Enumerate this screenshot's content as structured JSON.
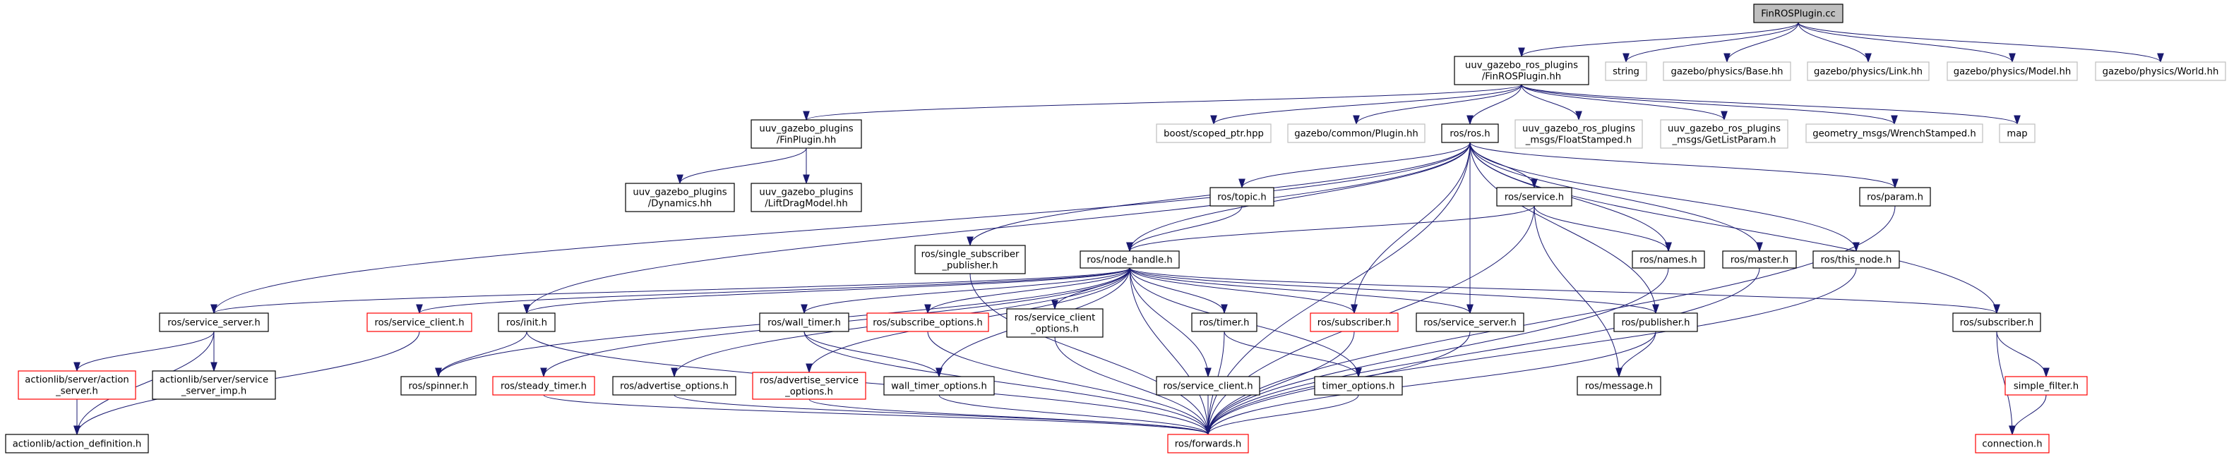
{
  "graph": {
    "edge_color": "#191970",
    "node_border_colors": {
      "internal": "#000000",
      "external": "#bfbfbf",
      "red": "#ff0000",
      "root_fill": "#bfbfbf"
    },
    "nodes": [
      {
        "id": "cc",
        "label": "FinROSPlugin.cc",
        "style": "root"
      },
      {
        "id": "hh",
        "label": "uuv_gazebo_ros_plugins\n/FinROSPlugin.hh",
        "style": "internal"
      },
      {
        "id": "string",
        "label": "string",
        "style": "external"
      },
      {
        "id": "base",
        "label": "gazebo/physics/Base.hh",
        "style": "external"
      },
      {
        "id": "link",
        "label": "gazebo/physics/Link.hh",
        "style": "external"
      },
      {
        "id": "model",
        "label": "gazebo/physics/Model.hh",
        "style": "external"
      },
      {
        "id": "world",
        "label": "gazebo/physics/World.hh",
        "style": "external"
      },
      {
        "id": "finplugin",
        "label": "uuv_gazebo_plugins\n/FinPlugin.hh",
        "style": "internal"
      },
      {
        "id": "boost",
        "label": "boost/scoped_ptr.hpp",
        "style": "external"
      },
      {
        "id": "plugin",
        "label": "gazebo/common/Plugin.hh",
        "style": "external"
      },
      {
        "id": "rosh",
        "label": "ros/ros.h",
        "style": "internal"
      },
      {
        "id": "floatstamped",
        "label": "uuv_gazebo_ros_plugins\n_msgs/FloatStamped.h",
        "style": "external"
      },
      {
        "id": "getlistparam",
        "label": "uuv_gazebo_ros_plugins\n_msgs/GetListParam.h",
        "style": "external"
      },
      {
        "id": "wrench",
        "label": "geometry_msgs/WrenchStamped.h",
        "style": "external"
      },
      {
        "id": "map",
        "label": "map",
        "style": "external"
      },
      {
        "id": "dynamics",
        "label": "uuv_gazebo_plugins\n/Dynamics.hh",
        "style": "internal"
      },
      {
        "id": "liftdrag",
        "label": "uuv_gazebo_plugins\n/LiftDragModel.hh",
        "style": "internal"
      },
      {
        "id": "topic",
        "label": "ros/topic.h",
        "style": "internal"
      },
      {
        "id": "service",
        "label": "ros/service.h",
        "style": "internal"
      },
      {
        "id": "param",
        "label": "ros/param.h",
        "style": "internal"
      },
      {
        "id": "singlesub",
        "label": "ros/single_subscriber\n_publisher.h",
        "style": "internal"
      },
      {
        "id": "nodehandle",
        "label": "ros/node_handle.h",
        "style": "internal"
      },
      {
        "id": "names",
        "label": "ros/names.h",
        "style": "internal"
      },
      {
        "id": "master",
        "label": "ros/master.h",
        "style": "internal"
      },
      {
        "id": "thisnode",
        "label": "ros/this_node.h",
        "style": "internal"
      },
      {
        "id": "servserverL",
        "label": "ros/service_server.h",
        "style": "internal"
      },
      {
        "id": "servclientR",
        "label": "ros/service_client.h",
        "style": "red"
      },
      {
        "id": "init",
        "label": "ros/init.h",
        "style": "internal"
      },
      {
        "id": "walltimer",
        "label": "ros/wall_timer.h",
        "style": "internal"
      },
      {
        "id": "subopts",
        "label": "ros/subscribe_options.h",
        "style": "red"
      },
      {
        "id": "servclientopts",
        "label": "ros/service_client\n_options.h",
        "style": "internal"
      },
      {
        "id": "timer",
        "label": "ros/timer.h",
        "style": "internal"
      },
      {
        "id": "subscriberR",
        "label": "ros/subscriber.h",
        "style": "red"
      },
      {
        "id": "servserverR",
        "label": "ros/service_server.h",
        "style": "internal"
      },
      {
        "id": "publisher",
        "label": "ros/publisher.h",
        "style": "internal"
      },
      {
        "id": "subscriberB",
        "label": "ros/subscriber.h",
        "style": "internal"
      },
      {
        "id": "actionserver",
        "label": "actionlib/server/action\n_server.h",
        "style": "red"
      },
      {
        "id": "servserverimp",
        "label": "actionlib/server/service\n_server_imp.h",
        "style": "internal"
      },
      {
        "id": "spinner",
        "label": "ros/spinner.h",
        "style": "internal"
      },
      {
        "id": "steadytimer",
        "label": "ros/steady_timer.h",
        "style": "red"
      },
      {
        "id": "advopts",
        "label": "ros/advertise_options.h",
        "style": "internal"
      },
      {
        "id": "advservopts",
        "label": "ros/advertise_service\n_options.h",
        "style": "red"
      },
      {
        "id": "walltimeropts",
        "label": "wall_timer_options.h",
        "style": "internal"
      },
      {
        "id": "servclientB",
        "label": "ros/service_client.h",
        "style": "internal"
      },
      {
        "id": "timeropts",
        "label": "timer_options.h",
        "style": "internal"
      },
      {
        "id": "message",
        "label": "ros/message.h",
        "style": "internal"
      },
      {
        "id": "simplefilter",
        "label": "simple_filter.h",
        "style": "red"
      },
      {
        "id": "actiondef",
        "label": "actionlib/action_definition.h",
        "style": "internal"
      },
      {
        "id": "forwards",
        "label": "ros/forwards.h",
        "style": "red"
      },
      {
        "id": "connection",
        "label": "connection.h",
        "style": "red"
      }
    ],
    "edges": [
      [
        "cc",
        "hh"
      ],
      [
        "cc",
        "string"
      ],
      [
        "cc",
        "base"
      ],
      [
        "cc",
        "link"
      ],
      [
        "cc",
        "model"
      ],
      [
        "cc",
        "world"
      ],
      [
        "hh",
        "finplugin"
      ],
      [
        "hh",
        "boost"
      ],
      [
        "hh",
        "plugin"
      ],
      [
        "hh",
        "rosh"
      ],
      [
        "hh",
        "floatstamped"
      ],
      [
        "hh",
        "getlistparam"
      ],
      [
        "hh",
        "wrench"
      ],
      [
        "hh",
        "map"
      ],
      [
        "finplugin",
        "dynamics"
      ],
      [
        "finplugin",
        "liftdrag"
      ],
      [
        "rosh",
        "servserverL"
      ],
      [
        "rosh",
        "singlesub"
      ],
      [
        "rosh",
        "nodehandle"
      ],
      [
        "rosh",
        "topic"
      ],
      [
        "rosh",
        "service"
      ],
      [
        "rosh",
        "init"
      ],
      [
        "rosh",
        "names"
      ],
      [
        "rosh",
        "master"
      ],
      [
        "rosh",
        "thisnode"
      ],
      [
        "rosh",
        "param"
      ],
      [
        "rosh",
        "publisher"
      ],
      [
        "rosh",
        "subscriberB"
      ],
      [
        "rosh",
        "subscriberR"
      ],
      [
        "rosh",
        "servserverR"
      ],
      [
        "rosh",
        "forwards"
      ],
      [
        "topic",
        "nodehandle"
      ],
      [
        "service",
        "nodehandle"
      ],
      [
        "service",
        "names"
      ],
      [
        "service",
        "message"
      ],
      [
        "service",
        "forwards"
      ],
      [
        "nodehandle",
        "servserverL"
      ],
      [
        "nodehandle",
        "servclientR"
      ],
      [
        "nodehandle",
        "init"
      ],
      [
        "nodehandle",
        "spinner"
      ],
      [
        "nodehandle",
        "steadytimer"
      ],
      [
        "nodehandle",
        "advopts"
      ],
      [
        "nodehandle",
        "advservopts"
      ],
      [
        "nodehandle",
        "walltimer"
      ],
      [
        "nodehandle",
        "walltimeropts"
      ],
      [
        "nodehandle",
        "subopts"
      ],
      [
        "nodehandle",
        "servclientopts"
      ],
      [
        "nodehandle",
        "servclientB"
      ],
      [
        "nodehandle",
        "timer"
      ],
      [
        "nodehandle",
        "timeropts"
      ],
      [
        "nodehandle",
        "subscriberR"
      ],
      [
        "nodehandle",
        "servserverR"
      ],
      [
        "nodehandle",
        "publisher"
      ],
      [
        "nodehandle",
        "subscriberB"
      ],
      [
        "nodehandle",
        "forwards"
      ],
      [
        "singlesub",
        "forwards"
      ],
      [
        "servserverL",
        "actionserver"
      ],
      [
        "servserverL",
        "servserverimp"
      ],
      [
        "servserverL",
        "actiondef"
      ],
      [
        "actionserver",
        "actiondef"
      ],
      [
        "servclientR",
        "actiondef"
      ],
      [
        "init",
        "spinner"
      ],
      [
        "init",
        "forwards"
      ],
      [
        "steadytimer",
        "forwards"
      ],
      [
        "advopts",
        "forwards"
      ],
      [
        "advservopts",
        "forwards"
      ],
      [
        "walltimer",
        "walltimeropts"
      ],
      [
        "walltimer",
        "forwards"
      ],
      [
        "walltimeropts",
        "forwards"
      ],
      [
        "subopts",
        "forwards"
      ],
      [
        "servclientopts",
        "forwards"
      ],
      [
        "timer",
        "timeropts"
      ],
      [
        "timer",
        "forwards"
      ],
      [
        "servclientB",
        "forwards"
      ],
      [
        "timeropts",
        "forwards"
      ],
      [
        "subscriberR",
        "forwards"
      ],
      [
        "servserverR",
        "forwards"
      ],
      [
        "publisher",
        "message"
      ],
      [
        "publisher",
        "forwards"
      ],
      [
        "names",
        "forwards"
      ],
      [
        "master",
        "forwards"
      ],
      [
        "thisnode",
        "forwards"
      ],
      [
        "param",
        "forwards"
      ],
      [
        "subscriberB",
        "simplefilter"
      ],
      [
        "subscriberB",
        "connection"
      ],
      [
        "simplefilter",
        "connection"
      ]
    ]
  }
}
